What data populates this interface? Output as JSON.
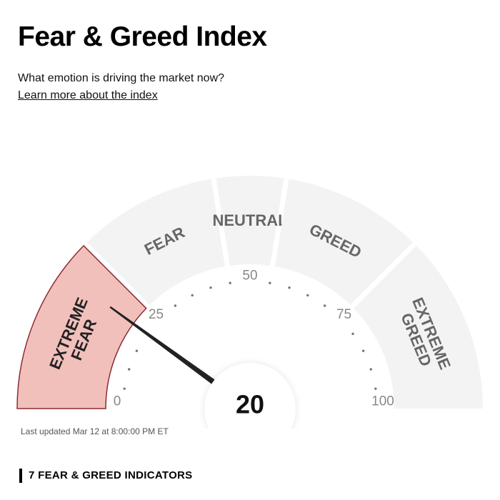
{
  "header": {
    "title": "Fear & Greed Index",
    "subtitle": "What emotion is driving the market now?",
    "learn_more_link": "Learn more about the index"
  },
  "gauge": {
    "value": 20,
    "value_label": "20",
    "active_zone": "extreme-fear",
    "zones": [
      {
        "id": "extreme-fear",
        "lines": [
          "EXTREME",
          "FEAR"
        ],
        "range": [
          0,
          25
        ]
      },
      {
        "id": "fear",
        "lines": [
          "FEAR"
        ],
        "range": [
          25,
          45
        ]
      },
      {
        "id": "neutral",
        "lines": [
          "NEUTRAL"
        ],
        "range": [
          45,
          55
        ]
      },
      {
        "id": "greed",
        "lines": [
          "GREED"
        ],
        "range": [
          55,
          75
        ]
      },
      {
        "id": "extreme-greed",
        "lines": [
          "EXTREME",
          "GREED"
        ],
        "range": [
          75,
          100
        ]
      }
    ],
    "scale_labels": [
      "0",
      "25",
      "50",
      "75",
      "100"
    ],
    "colors": {
      "zone_fill": "#f3f3f3",
      "active_fill": "#f2c0bb",
      "active_stroke": "#8a2b35",
      "zone_text": "#666666",
      "active_text": "#222222",
      "needle": "#222222"
    }
  },
  "footer": {
    "last_updated": "Last updated Mar 12 at 8:00:00 PM ET",
    "indicators_heading": "7 FEAR & GREED INDICATORS"
  }
}
